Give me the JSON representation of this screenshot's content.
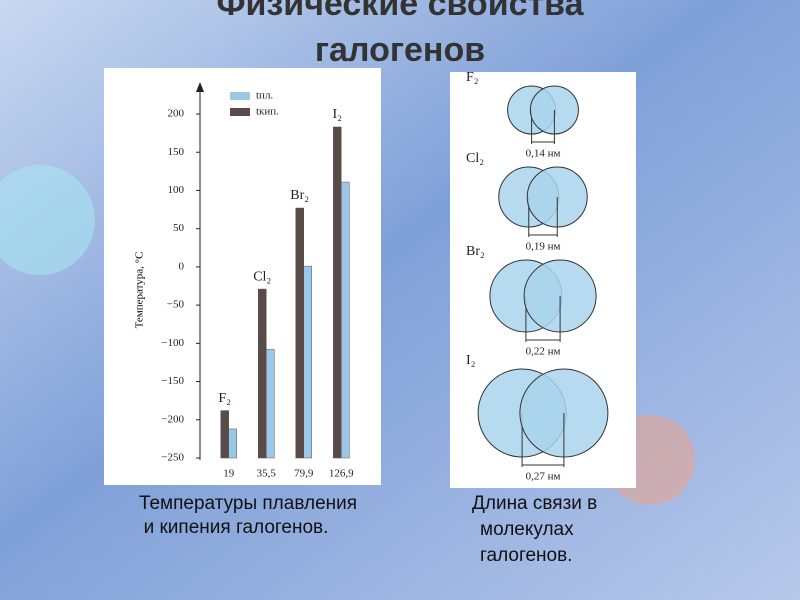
{
  "slide": {
    "title_line1": "Физические свойства",
    "title_line2": "галогенов",
    "caption_left": [
      "Температуры плавления",
      "и кипения галогенов."
    ],
    "caption_right": [
      "Длина связи в",
      "молекулах",
      "галогенов."
    ]
  },
  "chart_data": {
    "type": "bar",
    "y_label": "Температура, °C",
    "categories": [
      "19",
      "35,5",
      "79,9",
      "126,9"
    ],
    "bar_labels": [
      "F₂",
      "Cl₂",
      "Br₂",
      "I₂"
    ],
    "series": [
      {
        "name": "tпл.",
        "color": "#9cc8e8",
        "values": [
          -212,
          -108,
          1,
          111
        ]
      },
      {
        "name": "tкип.",
        "color": "#5a4a48",
        "values": [
          -188,
          -29,
          77,
          183
        ]
      }
    ],
    "ylim": [
      -250,
      200
    ],
    "yticks": [
      200,
      150,
      100,
      50,
      0,
      {
        "value": -50,
        "label": "−50"
      },
      {
        "value": -100,
        "label": "−100"
      },
      {
        "value": -150,
        "label": "−150"
      },
      {
        "value": -200,
        "label": "−200"
      },
      {
        "value": -250,
        "label": "−250"
      }
    ],
    "legend": "top-right"
  },
  "diagram": {
    "molecules": [
      {
        "label": "F₂",
        "bond_length": "0,14 нм"
      },
      {
        "label": "Cl₂",
        "bond_length": "0,19 нм"
      },
      {
        "label": "Br₂",
        "bond_length": "0,22 нм"
      },
      {
        "label": "I₂",
        "bond_length": "0,27 нм"
      }
    ]
  }
}
